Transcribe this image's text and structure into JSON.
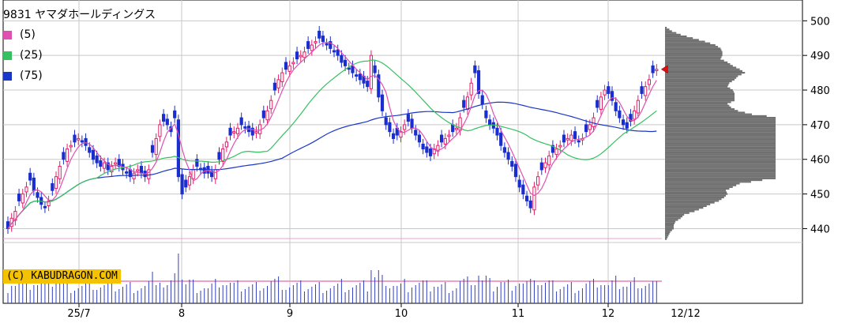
{
  "title": "9831 ヤマダホールディングス",
  "copyright": "(C) KABUDRAGON.COM",
  "legend": [
    {
      "label": "(5)",
      "color": "#e050b0"
    },
    {
      "label": "(25)",
      "color": "#36c060"
    },
    {
      "label": "(75)",
      "color": "#1a36c8"
    }
  ],
  "chart_data": {
    "type": "candlestick",
    "title": "9831 ヤマダホールディングス",
    "ylim": [
      436,
      506
    ],
    "yticks": [
      440,
      450,
      460,
      470,
      480,
      490,
      500
    ],
    "xticks": [
      "25/7",
      "8",
      "9",
      "10",
      "11",
      "12",
      "12/12"
    ],
    "colors": {
      "up": "#e0206a",
      "down": "#1a2ed0",
      "ma5": "#e050b0",
      "ma25": "#36c060",
      "ma75": "#1a36c8",
      "volume": "#3040c0",
      "profile": "#707070",
      "grid": "#c8c8c8"
    },
    "closes": [
      440,
      443,
      445,
      448,
      450,
      452,
      454,
      451,
      449,
      447,
      446,
      448,
      451,
      455,
      458,
      460,
      463,
      464,
      465,
      466,
      465,
      464,
      462,
      460,
      459,
      458,
      459,
      457,
      458,
      459,
      458,
      457,
      456,
      455,
      456,
      457,
      456,
      455,
      457,
      462,
      466,
      470,
      471,
      470,
      468,
      472,
      455,
      450,
      452,
      455,
      457,
      458,
      457,
      456,
      456,
      455,
      457,
      460,
      463,
      465,
      467,
      468,
      469,
      470,
      469,
      468,
      467,
      468,
      470,
      472,
      474,
      477,
      480,
      483,
      485,
      486,
      487,
      488,
      489,
      490,
      491,
      492,
      493,
      494,
      495,
      494,
      493,
      492,
      491,
      490,
      488,
      487,
      486,
      485,
      484,
      483,
      482,
      481,
      490,
      485,
      478,
      474,
      470,
      468,
      466,
      467,
      468,
      470,
      471,
      469,
      467,
      465,
      463,
      462,
      461,
      463,
      464,
      465,
      466,
      467,
      468,
      469,
      472,
      475,
      478,
      482,
      485,
      479,
      476,
      472,
      470,
      469,
      467,
      464,
      462,
      460,
      458,
      455,
      452,
      450,
      448,
      446,
      452,
      455,
      457,
      459,
      461,
      462,
      463,
      464,
      465,
      466,
      467,
      466,
      465,
      466,
      468,
      470,
      472,
      475,
      478,
      480,
      479,
      477,
      474,
      472,
      470,
      469,
      471,
      474,
      477,
      479,
      481,
      483,
      485,
      486
    ]
  }
}
